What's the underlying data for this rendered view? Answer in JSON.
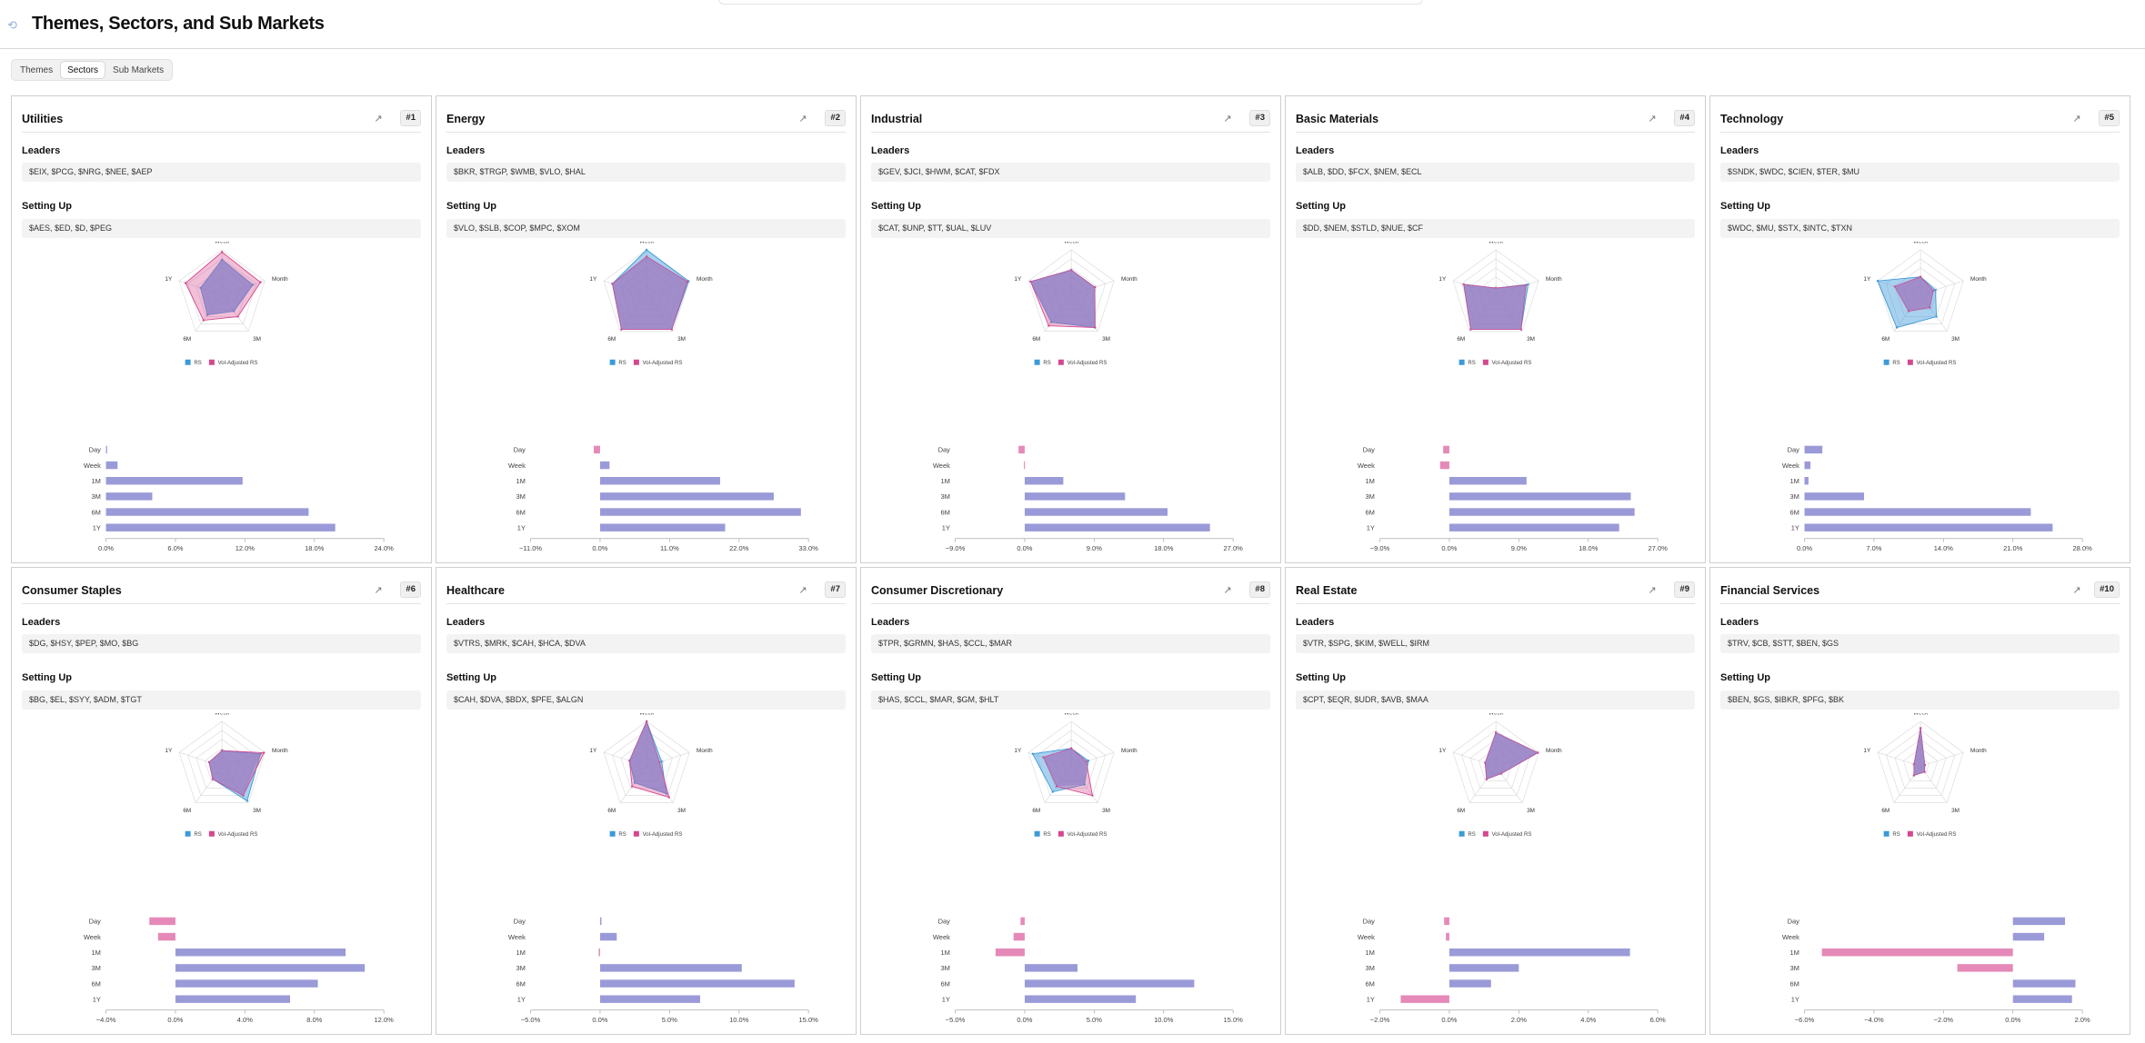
{
  "header": {
    "title": "Themes, Sectors, and Sub Markets"
  },
  "tabs": [
    {
      "label": "Themes",
      "active": false
    },
    {
      "label": "Sectors",
      "active": true
    },
    {
      "label": "Sub Markets",
      "active": false
    }
  ],
  "labels": {
    "leaders": "Leaders",
    "setting_up": "Setting Up",
    "legend_rs": "RS",
    "legend_vol": "Vol-Adjusted RS"
  },
  "colors": {
    "rs": "#3b9ad9",
    "vol": "#d6478f",
    "bar": "#9b9ad8",
    "bar_neg": "#e58ab8"
  },
  "radar_axes": [
    "Week",
    "Month",
    "3M",
    "6M",
    "1Y"
  ],
  "bar_periods": [
    "Day",
    "Week",
    "1M",
    "3M",
    "6M",
    "1Y"
  ],
  "cards": [
    {
      "title": "Utilities",
      "rank": "#1",
      "leaders": "$EIX, $PCG, $NRG, $NEE, $AEP",
      "setting_up": "$AES, $ED, $D, $PEG",
      "radar_rs": [
        0.78,
        0.72,
        0.45,
        0.55,
        0.5
      ],
      "radar_vol": [
        0.95,
        0.9,
        0.6,
        0.7,
        0.85
      ],
      "bar_values": [
        0.1,
        1.0,
        11.8,
        4.0,
        17.5,
        19.8
      ],
      "ticks": [
        "0.0%",
        "6.0%",
        "12.0%",
        "18.0%",
        "24.0%"
      ],
      "tick_values": [
        0,
        6,
        12,
        18,
        24
      ]
    },
    {
      "title": "Energy",
      "rank": "#2",
      "leaders": "$BKR, $TRGP, $WMB, $VLO, $HAL",
      "setting_up": "$VLO, $SLB, $COP, $MPC, $XOM",
      "radar_rs": [
        1.0,
        0.98,
        0.95,
        0.95,
        0.8
      ],
      "radar_vol": [
        0.85,
        0.95,
        0.95,
        0.95,
        0.8
      ],
      "bar_values": [
        -1.0,
        1.5,
        19.0,
        27.5,
        31.8,
        19.8
      ],
      "ticks": [
        "−11.0%",
        "0.0%",
        "11.0%",
        "22.0%",
        "33.0%"
      ],
      "tick_values": [
        -11,
        0,
        11,
        22,
        33
      ]
    },
    {
      "title": "Industrial",
      "rank": "#3",
      "leaders": "$GEV, $JCI, $HWM, $CAT, $FDX",
      "setting_up": "$CAT, $UNP, $TT, $UAL, $LUV",
      "radar_rs": [
        0.55,
        0.55,
        0.9,
        0.75,
        0.95
      ],
      "radar_vol": [
        0.55,
        0.55,
        0.9,
        0.85,
        0.95
      ],
      "bar_values": [
        -0.8,
        -0.1,
        5.0,
        13.0,
        18.5,
        24.0
      ],
      "ticks": [
        "−9.0%",
        "0.0%",
        "9.0%",
        "18.0%",
        "27.0%"
      ],
      "tick_values": [
        -9,
        0,
        9,
        18,
        27
      ]
    },
    {
      "title": "Basic Materials",
      "rank": "#4",
      "leaders": "$ALB, $DD, $FCX, $NEM, $ECL",
      "setting_up": "$DD, $NEM, $STLD, $NUE, $CF",
      "radar_rs": [
        0.15,
        0.75,
        0.95,
        0.95,
        0.75
      ],
      "radar_vol": [
        0.15,
        0.7,
        0.95,
        0.95,
        0.75
      ],
      "bar_values": [
        -0.8,
        -1.2,
        10.0,
        23.5,
        24.0,
        22.0
      ],
      "ticks": [
        "−9.0%",
        "0.0%",
        "9.0%",
        "18.0%",
        "27.0%"
      ],
      "tick_values": [
        -9,
        0,
        9,
        18,
        27
      ]
    },
    {
      "title": "Technology",
      "rank": "#5",
      "leaders": "$SNDK, $WDC, $CIEN, $TER, $MU",
      "setting_up": "$WDC, $MU, $STX, $INTC, $TXN",
      "radar_rs": [
        0.4,
        0.35,
        0.6,
        0.9,
        1.0
      ],
      "radar_vol": [
        0.4,
        0.3,
        0.35,
        0.45,
        0.6
      ],
      "bar_values": [
        1.8,
        0.6,
        0.4,
        6.0,
        22.8,
        25.0
      ],
      "ticks": [
        "0.0%",
        "7.0%",
        "14.0%",
        "21.0%",
        "28.0%"
      ],
      "tick_values": [
        0,
        7,
        14,
        21,
        28
      ]
    },
    {
      "title": "Consumer Staples",
      "rank": "#6",
      "leaders": "$DG, $HSY, $PEP, $MO, $BG",
      "setting_up": "$BG, $EL, $SYY, $ADM, $TGT",
      "radar_rs": [
        0.35,
        0.9,
        0.95,
        0.35,
        0.3
      ],
      "radar_vol": [
        0.35,
        0.98,
        0.8,
        0.35,
        0.3
      ],
      "bar_values": [
        -1.5,
        -1.0,
        9.8,
        10.9,
        8.2,
        6.6
      ],
      "ticks": [
        "−4.0%",
        "0.0%",
        "4.0%",
        "8.0%",
        "12.0%"
      ],
      "tick_values": [
        -4,
        0,
        4,
        8,
        12
      ]
    },
    {
      "title": "Healthcare",
      "rank": "#7",
      "leaders": "$VTRS, $MRK, $CAH, $HCA, $DVA",
      "setting_up": "$CAH, $DVA, $BDX, $PFE, $ALGN",
      "radar_rs": [
        1.0,
        0.35,
        0.75,
        0.45,
        0.4
      ],
      "radar_vol": [
        1.0,
        0.3,
        0.85,
        0.55,
        0.4
      ],
      "bar_values": [
        0.1,
        1.2,
        -0.1,
        10.2,
        14.0,
        7.2
      ],
      "ticks": [
        "−5.0%",
        "0.0%",
        "5.0%",
        "10.0%",
        "15.0%"
      ],
      "tick_values": [
        -5,
        0,
        5,
        10,
        15
      ]
    },
    {
      "title": "Consumer Discretionary",
      "rank": "#8",
      "leaders": "$TPR, $GRMN, $HAS, $CCL, $MAR",
      "setting_up": "$HAS, $CCL, $MAR, $GM, $HLT",
      "radar_rs": [
        0.4,
        0.4,
        0.5,
        0.7,
        0.9
      ],
      "radar_vol": [
        0.4,
        0.35,
        0.8,
        0.55,
        0.65
      ],
      "bar_values": [
        -0.3,
        -0.8,
        -2.1,
        3.8,
        12.2,
        8.0
      ],
      "ticks": [
        "−5.0%",
        "0.0%",
        "5.0%",
        "10.0%",
        "15.0%"
      ],
      "tick_values": [
        -5,
        0,
        5,
        10,
        15
      ]
    },
    {
      "title": "Real Estate",
      "rank": "#9",
      "leaders": "$VTR, $SPG, $KIM, $WELL, $IRM",
      "setting_up": "$CPT, $EQR, $UDR, $AVB, $MAA",
      "radar_rs": [
        0.75,
        0.98,
        0.2,
        0.35,
        0.25
      ],
      "radar_vol": [
        0.75,
        0.98,
        0.2,
        0.35,
        0.25
      ],
      "bar_values": [
        -0.15,
        -0.1,
        5.2,
        2.0,
        1.2,
        -1.4
      ],
      "ticks": [
        "−2.0%",
        "0.0%",
        "2.0%",
        "4.0%",
        "6.0%"
      ],
      "tick_values": [
        -2,
        0,
        2,
        4,
        6
      ]
    },
    {
      "title": "Financial Services",
      "rank": "#10",
      "leaders": "$TRV, $CB, $STT, $BEN, $GS",
      "setting_up": "$BEN, $GS, $IBKR, $PFG, $BK",
      "radar_rs": [
        0.85,
        0.1,
        0.15,
        0.25,
        0.15
      ],
      "radar_vol": [
        0.85,
        0.1,
        0.15,
        0.25,
        0.15
      ],
      "bar_values": [
        1.5,
        0.9,
        -5.5,
        -1.6,
        1.8,
        1.7
      ],
      "ticks": [
        "−6.0%",
        "−4.0%",
        "−2.0%",
        "0.0%",
        "2.0%"
      ],
      "tick_values": [
        -6,
        -4,
        -2,
        0,
        2
      ]
    }
  ]
}
